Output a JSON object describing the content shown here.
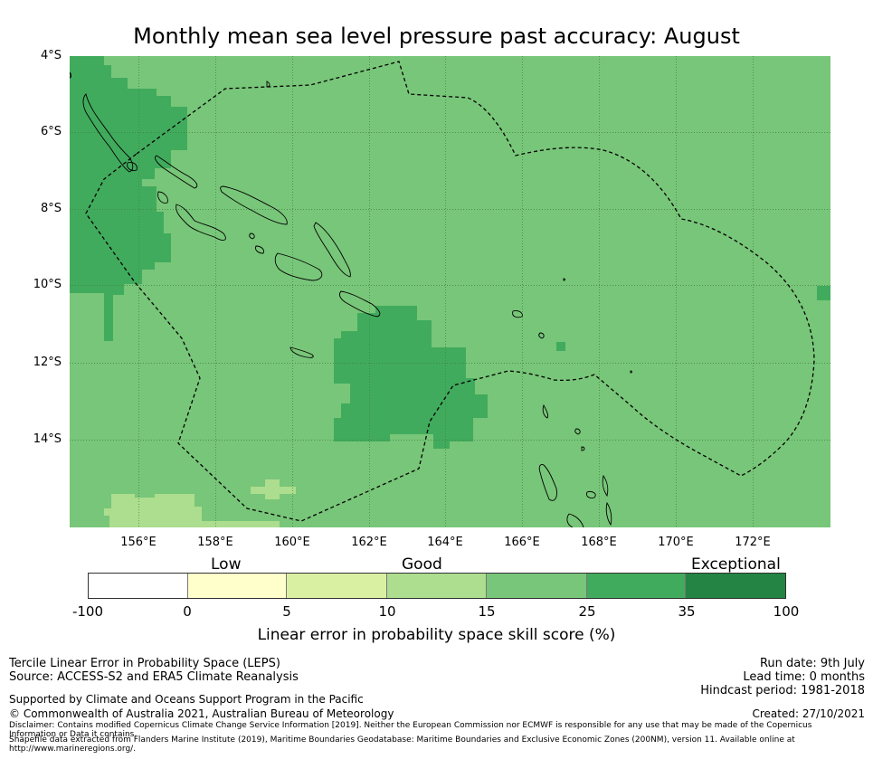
{
  "title": "Monthly mean sea level pressure past accuracy: August",
  "map": {
    "region": "Solomon Islands",
    "lat_labels": [
      "4°S",
      "6°S",
      "8°S",
      "10°S",
      "12°S",
      "14°S"
    ],
    "lon_labels": [
      "156°E",
      "158°E",
      "160°E",
      "162°E",
      "164°E",
      "166°E",
      "168°E",
      "170°E",
      "172°E"
    ],
    "colors": {
      "background": "#78c679",
      "good_high": "#41ab5d",
      "good_low": "#addd8e",
      "coast": "#000000",
      "grid": "#3d7f3d"
    }
  },
  "colorbar": {
    "category_labels": {
      "low": "Low",
      "good": "Good",
      "exceptional": "Exceptional"
    },
    "ticks": [
      "-100",
      "0",
      "5",
      "10",
      "15",
      "25",
      "35",
      "100"
    ],
    "segments": [
      {
        "range": "-100 to 0",
        "color": "#ffffff"
      },
      {
        "range": "0 to 5",
        "color": "#ffffcc"
      },
      {
        "range": "5 to 10",
        "color": "#d9f0a3"
      },
      {
        "range": "10 to 15",
        "color": "#addd8e"
      },
      {
        "range": "15 to 25",
        "color": "#78c679"
      },
      {
        "range": "25 to 35",
        "color": "#41ab5d"
      },
      {
        "range": "35 to 100",
        "color": "#238443"
      }
    ],
    "label": "Linear error in probability space skill score (%)"
  },
  "footer": {
    "method": "Tercile Linear Error in Probability Space (LEPS)",
    "source": "Source: ACCESS-S2 and ERA5 Climate Reanalysis",
    "support": "Supported by Climate and Oceans Support Program in the Pacific",
    "copyright": "© Commonwealth of Australia 2021, Australian Bureau of Meteorology",
    "disclaimer": "Disclaimer: Contains modified Copernicus Climate Change Service Information [2019]. Neither the European Commission nor ECMWF is responsible for any use that may be made of the Copernicus Information or Data it contains.",
    "shapefile": "Shapefile data extracted from Flanders Marine Institute (2019), Maritime Boundaries Geodatabase: Maritime Boundaries and Exclusive Economic Zones (200NM), version 11. Available online at http://www.marineregions.org/.",
    "run_date": "Run date: 9th July",
    "lead_time": "Lead time: 0 months",
    "hindcast": "Hindcast period: 1981-2018",
    "created": "Created: 27/10/2021"
  }
}
